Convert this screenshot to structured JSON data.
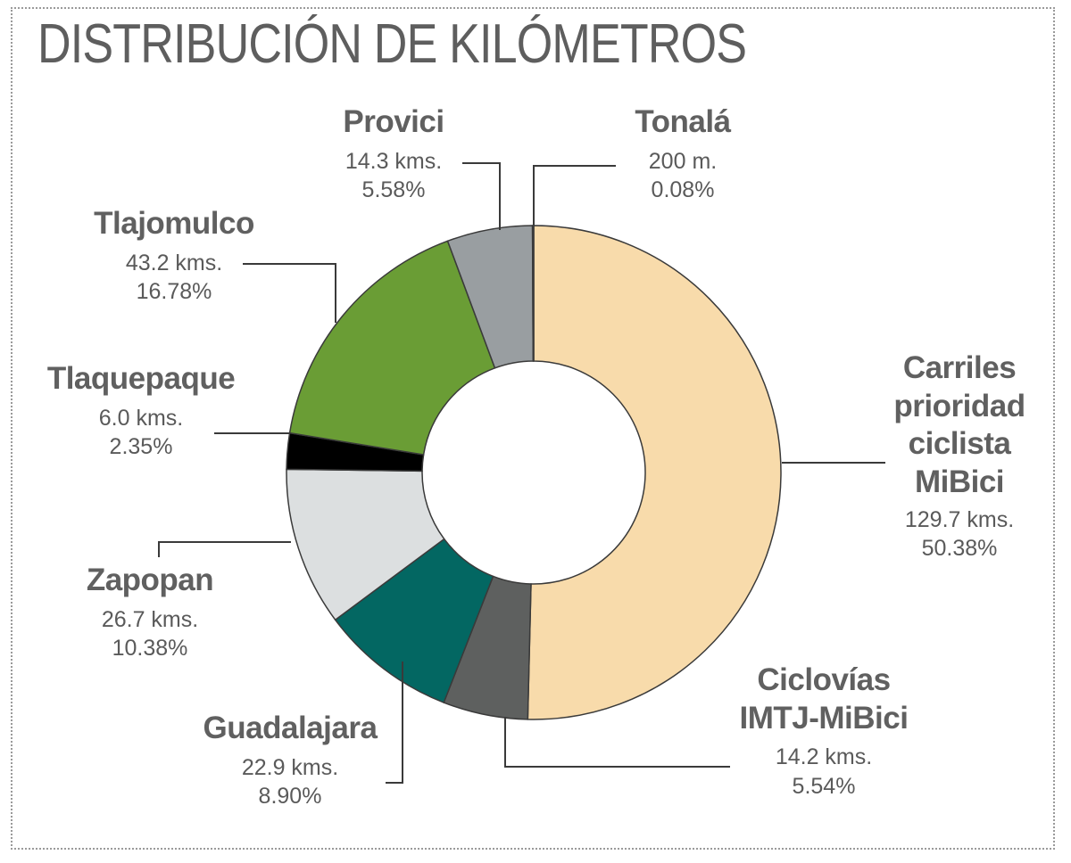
{
  "title": "DISTRIBUCIÓN DE KILÓMETROS",
  "chart_data": {
    "type": "pie",
    "title": "DISTRIBUCIÓN DE KILÓMETROS",
    "slices": [
      {
        "name": "Carriles prioridad ciclista MiBici",
        "value_text": "129.7 kms.",
        "percent_text": "50.38%",
        "value": 50.38,
        "color": "#f8dbab"
      },
      {
        "name": "Ciclovías IMTJ-MiBici",
        "value_text": "14.2 kms.",
        "percent_text": "5.54%",
        "value": 5.54,
        "color": "#5e605f"
      },
      {
        "name": "Guadalajara",
        "value_text": "22.9 kms.",
        "percent_text": "8.90%",
        "value": 8.9,
        "color": "#036762"
      },
      {
        "name": "Zapopan",
        "value_text": "26.7 kms.",
        "percent_text": "10.38%",
        "value": 10.38,
        "color": "#dcdfe0"
      },
      {
        "name": "Tlaquepaque",
        "value_text": "6.0 kms.",
        "percent_text": "2.35%",
        "value": 2.35,
        "color": "#000000"
      },
      {
        "name": "Tlajomulco",
        "value_text": "43.2 kms.",
        "percent_text": "16.78%",
        "value": 16.78,
        "color": "#6a9d35"
      },
      {
        "name": "Provici",
        "value_text": "14.3 kms.",
        "percent_text": "5.58%",
        "value": 5.58,
        "color": "#999ea1"
      },
      {
        "name": "Tonalá",
        "value_text": "200 m.",
        "percent_text": "0.08%",
        "value": 0.08,
        "color": "#c9c9c9"
      }
    ]
  }
}
